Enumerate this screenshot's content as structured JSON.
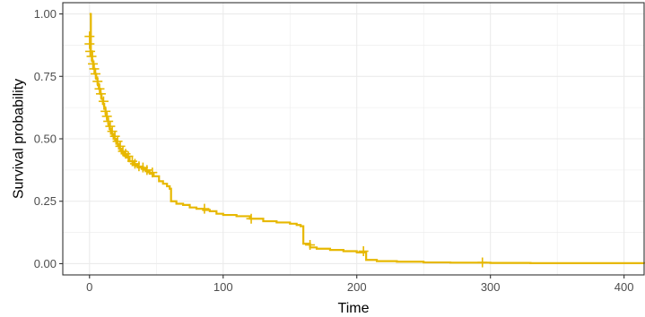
{
  "chart_data": {
    "type": "line",
    "subtype": "kaplan-meier-step",
    "title": "",
    "xlabel": "Time",
    "ylabel": "Survival probability",
    "xlim": [
      -20,
      415
    ],
    "ylim": [
      -0.045,
      1.045
    ],
    "xticks": [
      0,
      100,
      200,
      300,
      400
    ],
    "xtick_labels": [
      "0",
      "100",
      "200",
      "300",
      "400"
    ],
    "yticks": [
      0.0,
      0.25,
      0.5,
      0.75,
      1.0
    ],
    "ytick_labels": [
      "0.00",
      "0.25",
      "0.50",
      "0.75",
      "1.00"
    ],
    "grid": true,
    "legend": "none",
    "colors": {
      "series": "#E7B800",
      "grid": "#EBEBEB",
      "panel_border": "#333333",
      "background": "#FFFFFF"
    },
    "series": [
      {
        "x": [
          0,
          1,
          2,
          3,
          4,
          5,
          6,
          7,
          8,
          9,
          10,
          11,
          12,
          13,
          14,
          15,
          16,
          18,
          20,
          22,
          24,
          26,
          28,
          30,
          33,
          36,
          39,
          42,
          45,
          48,
          52,
          55,
          58,
          60,
          61,
          65,
          70,
          75,
          80,
          85,
          90,
          95,
          100,
          110,
          120,
          130,
          140,
          150,
          155,
          158,
          160,
          165,
          170,
          180,
          190,
          200,
          206,
          207,
          215,
          230,
          250,
          270,
          300,
          330,
          415
        ],
        "y": [
          1.0,
          0.85,
          0.81,
          0.78,
          0.76,
          0.74,
          0.72,
          0.7,
          0.68,
          0.66,
          0.64,
          0.62,
          0.6,
          0.58,
          0.56,
          0.54,
          0.52,
          0.5,
          0.48,
          0.46,
          0.445,
          0.435,
          0.425,
          0.41,
          0.395,
          0.385,
          0.38,
          0.37,
          0.36,
          0.35,
          0.33,
          0.32,
          0.31,
          0.3,
          0.25,
          0.24,
          0.235,
          0.225,
          0.22,
          0.215,
          0.21,
          0.2,
          0.195,
          0.19,
          0.18,
          0.17,
          0.165,
          0.16,
          0.155,
          0.15,
          0.08,
          0.065,
          0.06,
          0.055,
          0.05,
          0.045,
          0.045,
          0.015,
          0.01,
          0.008,
          0.005,
          0.004,
          0.003,
          0.002,
          0.0
        ]
      }
    ],
    "censor_marks": [
      {
        "x": 0,
        "y": 0.91
      },
      {
        "x": 0,
        "y": 0.88
      },
      {
        "x": 0.5,
        "y": 0.85
      },
      {
        "x": 1.5,
        "y": 0.83
      },
      {
        "x": 2.5,
        "y": 0.8
      },
      {
        "x": 3.5,
        "y": 0.78
      },
      {
        "x": 4.5,
        "y": 0.76
      },
      {
        "x": 6,
        "y": 0.73
      },
      {
        "x": 7.5,
        "y": 0.7
      },
      {
        "x": 8.5,
        "y": 0.68
      },
      {
        "x": 10.5,
        "y": 0.65
      },
      {
        "x": 12,
        "y": 0.61
      },
      {
        "x": 13,
        "y": 0.59
      },
      {
        "x": 14,
        "y": 0.57
      },
      {
        "x": 15.5,
        "y": 0.55
      },
      {
        "x": 17,
        "y": 0.53
      },
      {
        "x": 19,
        "y": 0.51
      },
      {
        "x": 21,
        "y": 0.49
      },
      {
        "x": 23,
        "y": 0.47
      },
      {
        "x": 25,
        "y": 0.45
      },
      {
        "x": 27,
        "y": 0.44
      },
      {
        "x": 29,
        "y": 0.43
      },
      {
        "x": 32,
        "y": 0.41
      },
      {
        "x": 34,
        "y": 0.4
      },
      {
        "x": 37,
        "y": 0.39
      },
      {
        "x": 40,
        "y": 0.385
      },
      {
        "x": 43,
        "y": 0.375
      },
      {
        "x": 47,
        "y": 0.365
      },
      {
        "x": 86,
        "y": 0.22
      },
      {
        "x": 121,
        "y": 0.18
      },
      {
        "x": 165,
        "y": 0.075
      },
      {
        "x": 205,
        "y": 0.05
      },
      {
        "x": 294,
        "y": 0.005
      }
    ]
  }
}
